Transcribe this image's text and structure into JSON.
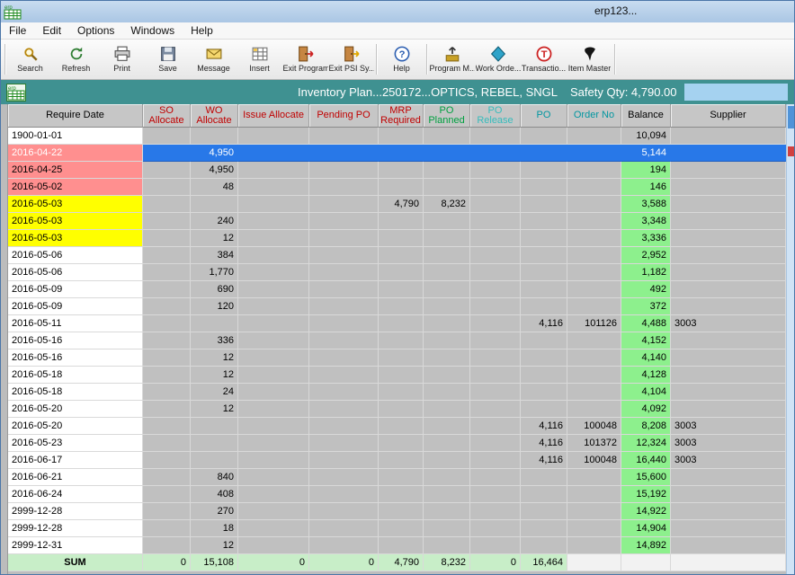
{
  "window": {
    "title": "erp123...",
    "logo_text": "erp"
  },
  "menu": {
    "items": [
      {
        "label": "File"
      },
      {
        "label": "Edit"
      },
      {
        "label": "Options"
      },
      {
        "label": "Windows"
      },
      {
        "label": "Help"
      }
    ]
  },
  "toolbar": {
    "buttons": [
      {
        "label": "Search",
        "icon": "search-icon"
      },
      {
        "label": "Refresh",
        "icon": "refresh-icon"
      },
      {
        "label": "Print",
        "icon": "print-icon"
      },
      {
        "label": "Save",
        "icon": "save-icon"
      },
      {
        "label": "Message",
        "icon": "message-icon"
      },
      {
        "label": "Insert",
        "icon": "insert-icon"
      },
      {
        "label": "Exit Program",
        "icon": "exit-program-icon"
      },
      {
        "label": "Exit PSI Sy...",
        "icon": "exit-psi-icon"
      },
      {
        "label": "Help",
        "icon": "help-icon"
      },
      {
        "label": "Program M...",
        "icon": "program-manager-icon"
      },
      {
        "label": "Work Orde...",
        "icon": "work-order-icon"
      },
      {
        "label": "Transactio...",
        "icon": "transaction-icon"
      },
      {
        "label": "Item Master",
        "icon": "item-master-icon"
      }
    ]
  },
  "form_header": {
    "title": "Inventory Plan...250172...OPTICS, REBEL, SNGL",
    "safety_qty": "Safety Qty: 4,790.00"
  },
  "table": {
    "columns": [
      {
        "key": "date",
        "label": "Require Date",
        "color": "#000000"
      },
      {
        "key": "so",
        "label": "SO Allocate",
        "color": "#c00000"
      },
      {
        "key": "wo",
        "label": "WO Allocate",
        "color": "#c00000"
      },
      {
        "key": "issue",
        "label": "Issue Allocate",
        "color": "#c00000"
      },
      {
        "key": "pending",
        "label": "Pending PO",
        "color": "#c00000"
      },
      {
        "key": "mrp",
        "label": "MRP Required",
        "color": "#c00000"
      },
      {
        "key": "po_planned",
        "label": "PO Planned",
        "color": "#00a040"
      },
      {
        "key": "po_release",
        "label": "PO Release",
        "color": "#35bcbc"
      },
      {
        "key": "po",
        "label": "PO",
        "color": "#0096a0"
      },
      {
        "key": "order_no",
        "label": "Order No",
        "color": "#0096a0"
      },
      {
        "key": "balance",
        "label": "Balance",
        "color": "#000000"
      },
      {
        "key": "supplier",
        "label": "Supplier",
        "color": "#000000"
      }
    ],
    "rows": [
      {
        "date": "1900-01-01",
        "balance": "10,094",
        "balance_bg": "gray"
      },
      {
        "date": "2016-04-22",
        "date_bg": "pink",
        "selected": true,
        "wo": "4,950",
        "balance": "5,144"
      },
      {
        "date": "2016-04-25",
        "date_bg": "pink",
        "wo": "4,950",
        "balance": "194"
      },
      {
        "date": "2016-05-02",
        "date_bg": "pink",
        "wo": "48",
        "balance": "146"
      },
      {
        "date": "2016-05-03",
        "date_bg": "yellow",
        "mrp": "4,790",
        "po_planned": "8,232",
        "balance": "3,588"
      },
      {
        "date": "2016-05-03",
        "date_bg": "yellow",
        "wo": "240",
        "balance": "3,348"
      },
      {
        "date": "2016-05-03",
        "date_bg": "yellow",
        "wo": "12",
        "balance": "3,336"
      },
      {
        "date": "2016-05-06",
        "wo": "384",
        "balance": "2,952"
      },
      {
        "date": "2016-05-06",
        "wo": "1,770",
        "balance": "1,182"
      },
      {
        "date": "2016-05-09",
        "wo": "690",
        "balance": "492"
      },
      {
        "date": "2016-05-09",
        "wo": "120",
        "balance": "372"
      },
      {
        "date": "2016-05-11",
        "po": "4,116",
        "order_no": "101126",
        "balance": "4,488",
        "supplier": "3003"
      },
      {
        "date": "2016-05-16",
        "wo": "336",
        "balance": "4,152"
      },
      {
        "date": "2016-05-16",
        "wo": "12",
        "balance": "4,140"
      },
      {
        "date": "2016-05-18",
        "wo": "12",
        "balance": "4,128"
      },
      {
        "date": "2016-05-18",
        "wo": "24",
        "balance": "4,104"
      },
      {
        "date": "2016-05-20",
        "wo": "12",
        "balance": "4,092"
      },
      {
        "date": "2016-05-20",
        "po": "4,116",
        "order_no": "100048",
        "balance": "8,208",
        "supplier": "3003"
      },
      {
        "date": "2016-05-23",
        "po": "4,116",
        "order_no": "101372",
        "balance": "12,324",
        "supplier": "3003"
      },
      {
        "date": "2016-06-17",
        "po": "4,116",
        "order_no": "100048",
        "balance": "16,440",
        "supplier": "3003"
      },
      {
        "date": "2016-06-21",
        "wo": "840",
        "balance": "15,600"
      },
      {
        "date": "2016-06-24",
        "wo": "408",
        "balance": "15,192"
      },
      {
        "date": "2999-12-28",
        "wo": "270",
        "balance": "14,922"
      },
      {
        "date": "2999-12-28",
        "wo": "18",
        "balance": "14,904"
      },
      {
        "date": "2999-12-31",
        "wo": "12",
        "balance": "14,892"
      }
    ],
    "sum_row": {
      "label": "SUM",
      "so": "0",
      "wo": "15,108",
      "issue": "0",
      "pending": "0",
      "mrp": "4,790",
      "po_planned": "8,232",
      "po_release": "0",
      "po": "16,464"
    }
  },
  "colors": {
    "selected_row": "#2878e8",
    "balance_positive": "#8df08d",
    "date_warning_pink": "#ff8f8f",
    "date_alert_yellow": "#ffff00",
    "cell_gray": "#c0c0c0",
    "sum_row_bg": "#c8eec8",
    "header_teal": "#3f9191"
  }
}
